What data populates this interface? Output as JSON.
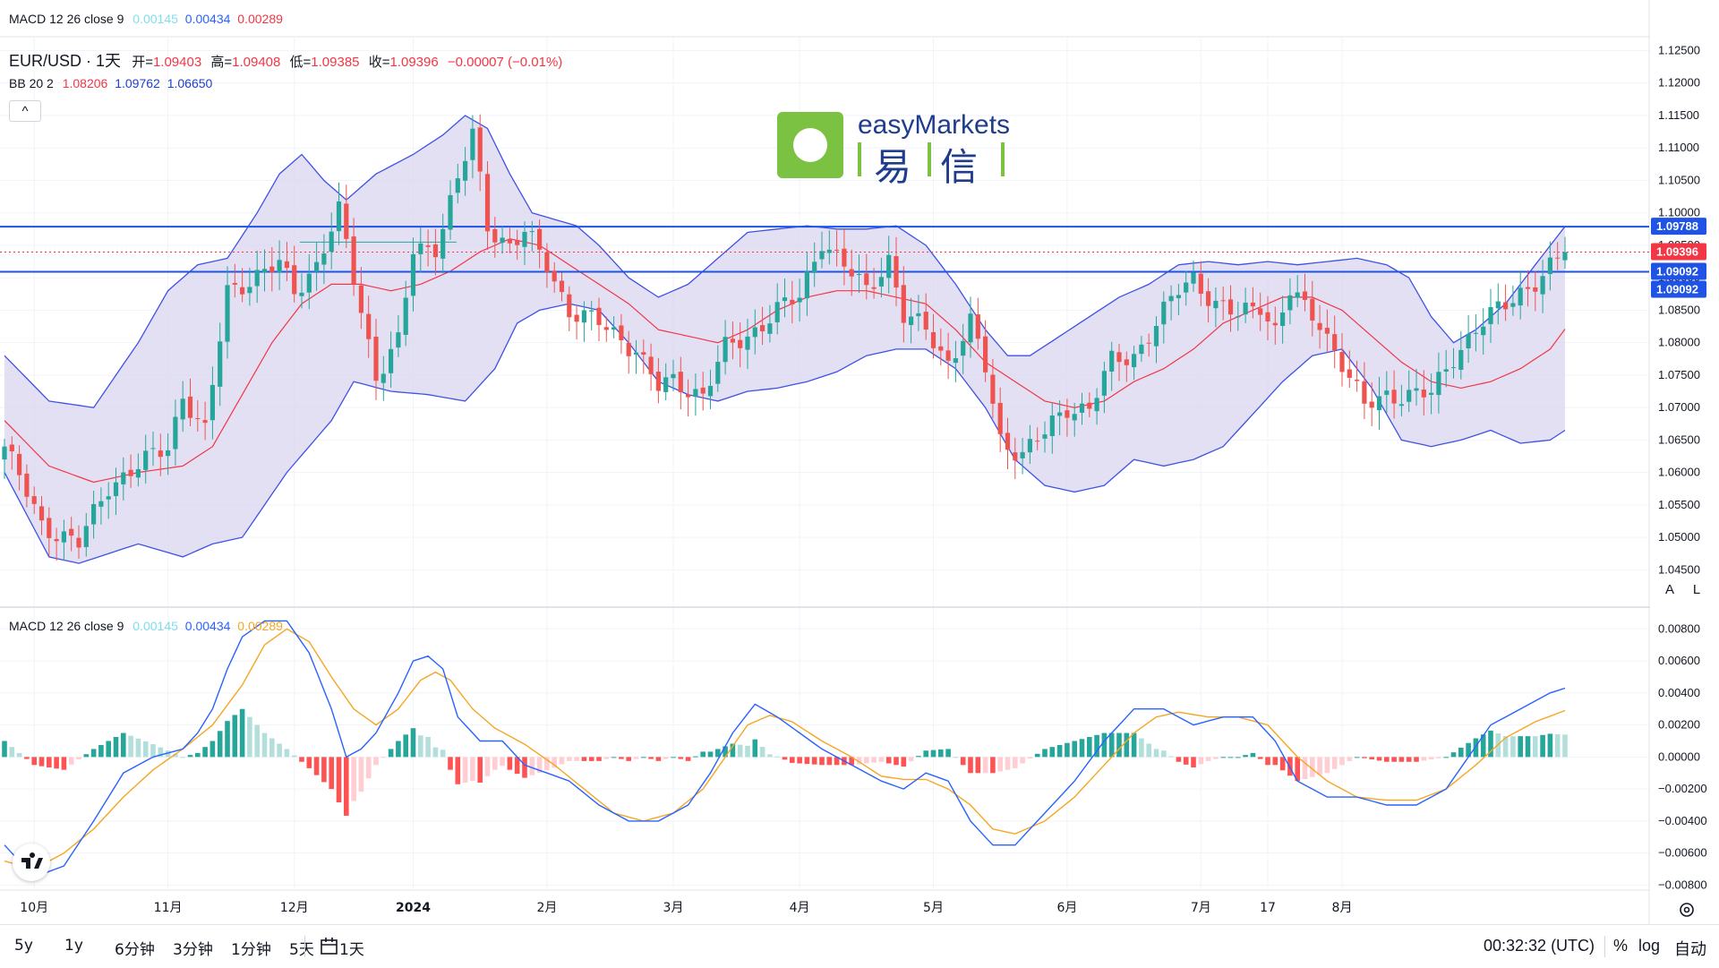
{
  "legend_top": {
    "name": "MACD 12 26 close 9",
    "hist": "0.00145",
    "macd": "0.00434",
    "signal": "0.00289"
  },
  "header": {
    "symbol": "EUR/USD · 1天",
    "open_label": "开=",
    "open": "1.09403",
    "high_label": "高=",
    "high": "1.09408",
    "low_label": "低=",
    "low": "1.09385",
    "close_label": "收=",
    "close": "1.09396",
    "change": "−0.00007 (−0.01%)"
  },
  "bb_legend": {
    "name": "BB 20 2",
    "basis": "1.08206",
    "upper": "1.09762",
    "lower": "1.06650"
  },
  "collapse_label": "^",
  "logo": {
    "brand": "easyMarkets",
    "cn1": "易",
    "cn2": "信"
  },
  "macd_legend": {
    "name": "MACD 12 26 close 9",
    "hist": "0.00145",
    "macd": "0.00434",
    "signal": "0.00289"
  },
  "colors": {
    "up": "#26a69a",
    "down": "#ef5350",
    "bb_fill": "#d9d6f0",
    "bb_line": "#3f51e5",
    "basis": "#f23645",
    "hline": "#1e53e5",
    "macd": "#2962ff",
    "signal": "#f5a623",
    "hist_up": "#26a69a",
    "hist_up_light": "#b2dfdb",
    "hist_down": "#ff5252",
    "hist_down_light": "#ffcdd2"
  },
  "price_axis": {
    "ticks": [
      "1.12500",
      "1.12000",
      "1.11500",
      "1.11000",
      "1.10500",
      "1.10000",
      "1.09500",
      "1.09000",
      "1.08500",
      "1.08000",
      "1.07500",
      "1.07000",
      "1.06500",
      "1.06000",
      "1.05500",
      "1.05000",
      "1.04500"
    ],
    "labels": [
      {
        "text": "1.09788",
        "bg": "#1e53e5"
      },
      {
        "text": "1.09396",
        "bg": "#f23645"
      },
      {
        "text": "1.09092",
        "bg": "#1e53e5"
      },
      {
        "text": "1.09092",
        "bg": "#1e53e5"
      }
    ]
  },
  "macd_axis": {
    "ticks": [
      "0.00800",
      "0.00600",
      "0.00400",
      "0.00200",
      "0.00000",
      "−0.00200",
      "−0.00400",
      "−0.00600",
      "−0.00800"
    ]
  },
  "scale_buttons": {
    "auto": "A",
    "log": "L"
  },
  "time_axis": [
    "10月",
    "11月",
    "12月",
    "2024",
    "2月",
    "3月",
    "4月",
    "5月",
    "6月",
    "7月",
    "17",
    "8月"
  ],
  "toolbar": {
    "ranges": [
      "5y",
      "1y",
      "6分钟",
      "3分钟",
      "1分钟",
      "5天",
      "1天"
    ],
    "clock": "00:32:32 (UTC)",
    "pct": "%",
    "log": "log",
    "auto": "自动"
  },
  "chart_data": {
    "type": "candlestick",
    "symbol": "EUR/USD",
    "interval": "1天",
    "ylim": [
      1.0445,
      1.127
    ],
    "horizontal_lines": [
      1.09788,
      1.09092
    ],
    "last_close": 1.09396,
    "x_months": [
      "10月",
      "11月",
      "12月",
      "2024",
      "2月",
      "3月",
      "4月",
      "5月",
      "6月",
      "7月",
      "17",
      "8月"
    ],
    "close_anchors": [
      [
        0,
        1.064
      ],
      [
        5,
        1.052
      ],
      [
        10,
        1.049
      ],
      [
        14,
        1.058
      ],
      [
        22,
        1.064
      ],
      [
        24,
        1.072
      ],
      [
        27,
        1.066
      ],
      [
        30,
        1.088
      ],
      [
        37,
        1.092
      ],
      [
        39,
        1.088
      ],
      [
        42,
        1.092
      ],
      [
        45,
        1.1
      ],
      [
        46,
        1.095
      ],
      [
        50,
        1.075
      ],
      [
        53,
        1.08
      ],
      [
        55,
        1.094
      ],
      [
        58,
        1.095
      ],
      [
        61,
        1.105
      ],
      [
        63,
        1.112
      ],
      [
        65,
        1.098
      ],
      [
        68,
        1.095
      ],
      [
        70,
        1.097
      ],
      [
        73,
        1.092
      ],
      [
        76,
        1.085
      ],
      [
        80,
        1.083
      ],
      [
        85,
        1.079
      ],
      [
        88,
        1.073
      ],
      [
        90,
        1.074
      ],
      [
        94,
        1.072
      ],
      [
        97,
        1.079
      ],
      [
        100,
        1.081
      ],
      [
        104,
        1.085
      ],
      [
        107,
        1.087
      ],
      [
        110,
        1.096
      ],
      [
        112,
        1.093
      ],
      [
        116,
        1.088
      ],
      [
        119,
        1.093
      ],
      [
        121,
        1.084
      ],
      [
        124,
        1.082
      ],
      [
        127,
        1.077
      ],
      [
        130,
        1.083
      ],
      [
        132,
        1.076
      ],
      [
        134,
        1.065
      ],
      [
        137,
        1.063
      ],
      [
        140,
        1.066
      ],
      [
        143,
        1.07
      ],
      [
        146,
        1.07
      ],
      [
        149,
        1.077
      ],
      [
        152,
        1.078
      ],
      [
        155,
        1.083
      ],
      [
        158,
        1.088
      ],
      [
        160,
        1.09
      ],
      [
        163,
        1.086
      ],
      [
        166,
        1.084
      ],
      [
        169,
        1.086
      ],
      [
        171,
        1.082
      ],
      [
        173,
        1.088
      ],
      [
        175,
        1.085
      ],
      [
        177,
        1.083
      ],
      [
        180,
        1.077
      ],
      [
        183,
        1.07
      ],
      [
        186,
        1.072
      ],
      [
        189,
        1.072
      ],
      [
        192,
        1.072
      ],
      [
        195,
        1.078
      ],
      [
        198,
        1.082
      ],
      [
        201,
        1.085
      ],
      [
        204,
        1.088
      ],
      [
        207,
        1.09
      ],
      [
        210,
        1.094
      ]
    ],
    "bb_upper_anchors": [
      [
        0,
        1.078
      ],
      [
        6,
        1.071
      ],
      [
        12,
        1.07
      ],
      [
        18,
        1.08
      ],
      [
        22,
        1.088
      ],
      [
        26,
        1.092
      ],
      [
        30,
        1.093
      ],
      [
        34,
        1.1
      ],
      [
        37,
        1.106
      ],
      [
        40,
        1.109
      ],
      [
        43,
        1.105
      ],
      [
        46,
        1.102
      ],
      [
        50,
        1.106
      ],
      [
        55,
        1.109
      ],
      [
        59,
        1.112
      ],
      [
        62,
        1.115
      ],
      [
        65,
        1.113
      ],
      [
        68,
        1.106
      ],
      [
        71,
        1.1
      ],
      [
        74,
        1.099
      ],
      [
        77,
        1.098
      ],
      [
        80,
        1.095
      ],
      [
        84,
        1.09
      ],
      [
        88,
        1.087
      ],
      [
        92,
        1.089
      ],
      [
        96,
        1.093
      ],
      [
        100,
        1.097
      ],
      [
        104,
        1.0975
      ],
      [
        108,
        1.098
      ],
      [
        112,
        1.0975
      ],
      [
        116,
        1.0975
      ],
      [
        120,
        1.098
      ],
      [
        124,
        1.095
      ],
      [
        128,
        1.089
      ],
      [
        132,
        1.082
      ],
      [
        135,
        1.078
      ],
      [
        138,
        1.078
      ],
      [
        142,
        1.081
      ],
      [
        146,
        1.084
      ],
      [
        150,
        1.087
      ],
      [
        154,
        1.089
      ],
      [
        158,
        1.092
      ],
      [
        162,
        1.0925
      ],
      [
        166,
        1.092
      ],
      [
        170,
        1.0925
      ],
      [
        174,
        1.092
      ],
      [
        178,
        1.0925
      ],
      [
        182,
        1.093
      ],
      [
        186,
        1.092
      ],
      [
        189,
        1.09
      ],
      [
        192,
        1.084
      ],
      [
        195,
        1.08
      ],
      [
        198,
        1.082
      ],
      [
        202,
        1.086
      ],
      [
        206,
        1.092
      ],
      [
        210,
        1.0979
      ]
    ],
    "bb_lower_anchors": [
      [
        0,
        1.06
      ],
      [
        6,
        1.047
      ],
      [
        10,
        1.046
      ],
      [
        18,
        1.049
      ],
      [
        24,
        1.047
      ],
      [
        28,
        1.049
      ],
      [
        32,
        1.05
      ],
      [
        35,
        1.055
      ],
      [
        38,
        1.06
      ],
      [
        41,
        1.064
      ],
      [
        44,
        1.068
      ],
      [
        47,
        1.074
      ],
      [
        52,
        1.0725
      ],
      [
        57,
        1.072
      ],
      [
        62,
        1.071
      ],
      [
        66,
        1.076
      ],
      [
        69,
        1.083
      ],
      [
        72,
        1.085
      ],
      [
        76,
        1.086
      ],
      [
        80,
        1.085
      ],
      [
        84,
        1.08
      ],
      [
        88,
        1.074
      ],
      [
        92,
        1.072
      ],
      [
        96,
        1.071
      ],
      [
        100,
        1.0725
      ],
      [
        104,
        1.073
      ],
      [
        108,
        1.074
      ],
      [
        112,
        1.0755
      ],
      [
        116,
        1.078
      ],
      [
        120,
        1.079
      ],
      [
        124,
        1.079
      ],
      [
        128,
        1.076
      ],
      [
        132,
        1.07
      ],
      [
        136,
        1.062
      ],
      [
        140,
        1.058
      ],
      [
        144,
        1.057
      ],
      [
        148,
        1.058
      ],
      [
        152,
        1.062
      ],
      [
        156,
        1.061
      ],
      [
        160,
        1.062
      ],
      [
        164,
        1.064
      ],
      [
        168,
        1.069
      ],
      [
        172,
        1.074
      ],
      [
        176,
        1.078
      ],
      [
        180,
        1.079
      ],
      [
        184,
        1.073
      ],
      [
        188,
        1.065
      ],
      [
        192,
        1.064
      ],
      [
        196,
        1.065
      ],
      [
        200,
        1.0665
      ],
      [
        204,
        1.0645
      ],
      [
        208,
        1.065
      ],
      [
        210,
        1.0665
      ]
    ],
    "bb_basis_anchors": [
      [
        0,
        1.068
      ],
      [
        6,
        1.061
      ],
      [
        12,
        1.0585
      ],
      [
        18,
        1.06
      ],
      [
        24,
        1.061
      ],
      [
        28,
        1.064
      ],
      [
        32,
        1.072
      ],
      [
        36,
        1.08
      ],
      [
        40,
        1.086
      ],
      [
        44,
        1.089
      ],
      [
        48,
        1.089
      ],
      [
        52,
        1.088
      ],
      [
        56,
        1.089
      ],
      [
        60,
        1.091
      ],
      [
        64,
        1.094
      ],
      [
        68,
        1.096
      ],
      [
        72,
        1.095
      ],
      [
        76,
        1.092
      ],
      [
        80,
        1.089
      ],
      [
        84,
        1.086
      ],
      [
        88,
        1.082
      ],
      [
        92,
        1.081
      ],
      [
        96,
        1.08
      ],
      [
        100,
        1.082
      ],
      [
        104,
        1.085
      ],
      [
        108,
        1.087
      ],
      [
        112,
        1.088
      ],
      [
        116,
        1.088
      ],
      [
        120,
        1.087
      ],
      [
        124,
        1.086
      ],
      [
        128,
        1.082
      ],
      [
        132,
        1.077
      ],
      [
        136,
        1.074
      ],
      [
        140,
        1.071
      ],
      [
        144,
        1.07
      ],
      [
        148,
        1.071
      ],
      [
        152,
        1.074
      ],
      [
        156,
        1.076
      ],
      [
        160,
        1.079
      ],
      [
        164,
        1.083
      ],
      [
        168,
        1.085
      ],
      [
        172,
        1.087
      ],
      [
        176,
        1.087
      ],
      [
        180,
        1.085
      ],
      [
        184,
        1.081
      ],
      [
        188,
        1.077
      ],
      [
        192,
        1.074
      ],
      [
        196,
        1.073
      ],
      [
        200,
        1.074
      ],
      [
        204,
        1.076
      ],
      [
        208,
        1.079
      ],
      [
        210,
        1.0821
      ]
    ],
    "macd_ylim": [
      -0.0082,
      0.0088
    ],
    "macd_anchors": [
      [
        0,
        -0.0055
      ],
      [
        4,
        -0.0075
      ],
      [
        8,
        -0.0068
      ],
      [
        12,
        -0.004
      ],
      [
        16,
        -0.001
      ],
      [
        20,
        0.0
      ],
      [
        24,
        0.0005
      ],
      [
        26,
        0.0015
      ],
      [
        28,
        0.003
      ],
      [
        30,
        0.0055
      ],
      [
        32,
        0.0075
      ],
      [
        35,
        0.0085
      ],
      [
        38,
        0.0085
      ],
      [
        41,
        0.0065
      ],
      [
        44,
        0.003
      ],
      [
        46,
        0.0
      ],
      [
        48,
        0.0005
      ],
      [
        50,
        0.0015
      ],
      [
        53,
        0.004
      ],
      [
        55,
        0.006
      ],
      [
        57,
        0.0063
      ],
      [
        59,
        0.0055
      ],
      [
        61,
        0.0025
      ],
      [
        64,
        0.001
      ],
      [
        67,
        0.001
      ],
      [
        70,
        -0.0005
      ],
      [
        73,
        -0.001
      ],
      [
        76,
        -0.0015
      ],
      [
        80,
        -0.003
      ],
      [
        84,
        -0.004
      ],
      [
        88,
        -0.004
      ],
      [
        92,
        -0.003
      ],
      [
        95,
        -0.001
      ],
      [
        98,
        0.0015
      ],
      [
        101,
        0.0033
      ],
      [
        104,
        0.0025
      ],
      [
        107,
        0.0015
      ],
      [
        110,
        0.0005
      ],
      [
        114,
        -0.0005
      ],
      [
        118,
        -0.0015
      ],
      [
        121,
        -0.002
      ],
      [
        124,
        -0.001
      ],
      [
        127,
        -0.0015
      ],
      [
        130,
        -0.004
      ],
      [
        133,
        -0.0055
      ],
      [
        136,
        -0.0055
      ],
      [
        140,
        -0.0035
      ],
      [
        144,
        -0.0015
      ],
      [
        148,
        0.001
      ],
      [
        152,
        0.003
      ],
      [
        156,
        0.003
      ],
      [
        160,
        0.002
      ],
      [
        164,
        0.0025
      ],
      [
        168,
        0.0025
      ],
      [
        171,
        0.001
      ],
      [
        174,
        -0.0015
      ],
      [
        178,
        -0.0025
      ],
      [
        182,
        -0.0025
      ],
      [
        186,
        -0.003
      ],
      [
        190,
        -0.003
      ],
      [
        194,
        -0.002
      ],
      [
        197,
        0.0
      ],
      [
        200,
        0.002
      ],
      [
        204,
        0.003
      ],
      [
        208,
        0.004
      ],
      [
        210,
        0.0043
      ]
    ],
    "signal_anchors": [
      [
        0,
        -0.0065
      ],
      [
        4,
        -0.007
      ],
      [
        8,
        -0.006
      ],
      [
        12,
        -0.0045
      ],
      [
        16,
        -0.0025
      ],
      [
        20,
        -0.0008
      ],
      [
        24,
        0.0005
      ],
      [
        28,
        0.002
      ],
      [
        32,
        0.0045
      ],
      [
        35,
        0.007
      ],
      [
        38,
        0.008
      ],
      [
        41,
        0.0072
      ],
      [
        44,
        0.005
      ],
      [
        47,
        0.003
      ],
      [
        50,
        0.002
      ],
      [
        53,
        0.003
      ],
      [
        56,
        0.0048
      ],
      [
        58,
        0.0053
      ],
      [
        60,
        0.0048
      ],
      [
        63,
        0.003
      ],
      [
        66,
        0.0018
      ],
      [
        70,
        0.0008
      ],
      [
        74,
        -0.0005
      ],
      [
        78,
        -0.002
      ],
      [
        82,
        -0.0035
      ],
      [
        86,
        -0.004
      ],
      [
        90,
        -0.0035
      ],
      [
        94,
        -0.002
      ],
      [
        97,
        0.0
      ],
      [
        100,
        0.002
      ],
      [
        103,
        0.0026
      ],
      [
        106,
        0.0022
      ],
      [
        110,
        0.001
      ],
      [
        114,
        0.0
      ],
      [
        118,
        -0.0012
      ],
      [
        121,
        -0.0014
      ],
      [
        124,
        -0.0014
      ],
      [
        127,
        -0.002
      ],
      [
        130,
        -0.003
      ],
      [
        133,
        -0.0045
      ],
      [
        136,
        -0.0048
      ],
      [
        140,
        -0.004
      ],
      [
        144,
        -0.0025
      ],
      [
        148,
        -0.0005
      ],
      [
        152,
        0.0015
      ],
      [
        155,
        0.0025
      ],
      [
        158,
        0.0028
      ],
      [
        162,
        0.0025
      ],
      [
        166,
        0.0025
      ],
      [
        170,
        0.002
      ],
      [
        174,
        0.0
      ],
      [
        178,
        -0.0015
      ],
      [
        182,
        -0.0025
      ],
      [
        186,
        -0.0027
      ],
      [
        190,
        -0.0027
      ],
      [
        194,
        -0.002
      ],
      [
        198,
        -0.0005
      ],
      [
        202,
        0.0012
      ],
      [
        206,
        0.0022
      ],
      [
        210,
        0.0029
      ]
    ]
  }
}
